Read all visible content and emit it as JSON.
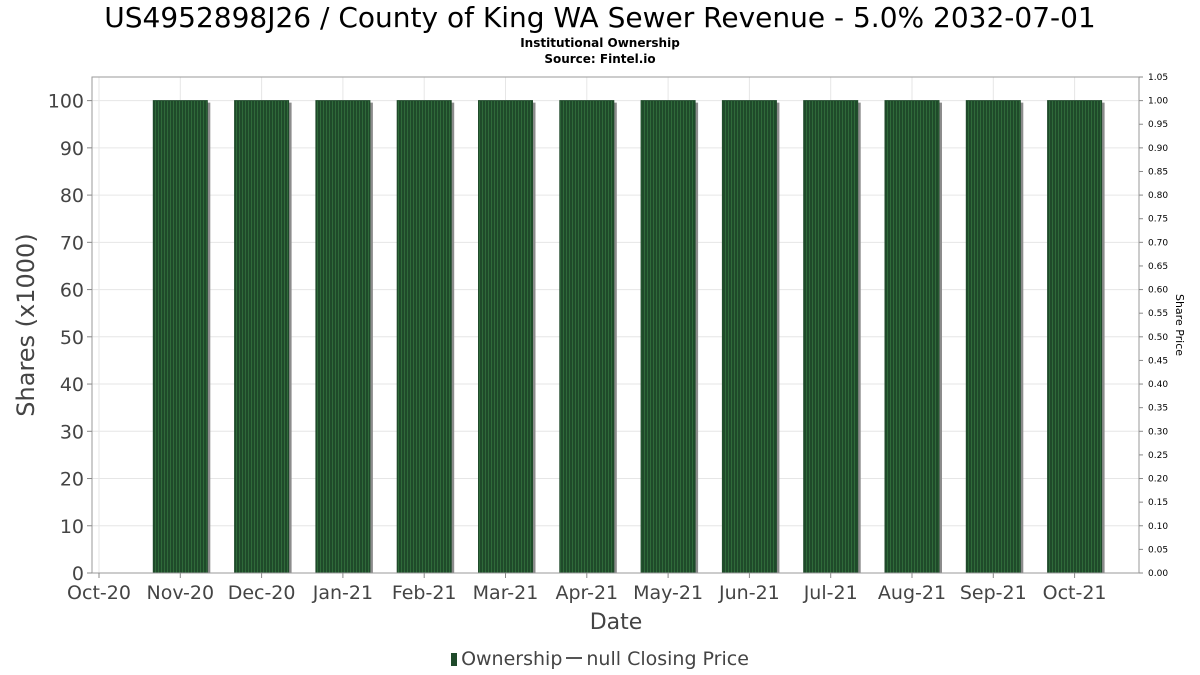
{
  "title": "US4952898J26 / County of King WA Sewer Revenue - 5.0% 2032-07-01",
  "subtitle": "Institutional Ownership",
  "source": "Source: Fintel.io",
  "legend": {
    "ownership_label": "Ownership",
    "price_label": "null Closing Price"
  },
  "colors": {
    "bar": "#1f4a2a",
    "bar_stripe": "#2f6a3a",
    "bar_shadow": "#8c8c8c",
    "grid": "#e6e6e6",
    "axis_text": "#444444"
  },
  "chart_data": {
    "type": "bar",
    "title": "US4952898J26 / County of King WA Sewer Revenue - 5.0% 2032-07-01",
    "subtitle": "Institutional Ownership",
    "xlabel": "Date",
    "ylabel": "Shares (x1000)",
    "y2label": "Share Price",
    "x_ticks": [
      "Oct-20",
      "Nov-20",
      "Dec-20",
      "Jan-21",
      "Feb-21",
      "Mar-21",
      "Apr-21",
      "May-21",
      "Jun-21",
      "Jul-21",
      "Aug-21",
      "Sep-21",
      "Oct-21"
    ],
    "categories": [
      "Nov-20",
      "Dec-20",
      "Jan-21",
      "Feb-21",
      "Mar-21",
      "Apr-21",
      "May-21",
      "Jun-21",
      "Jul-21",
      "Aug-21",
      "Sep-21",
      "Oct-21"
    ],
    "series": [
      {
        "name": "Ownership",
        "values": [
          100,
          100,
          100,
          100,
          100,
          100,
          100,
          100,
          100,
          100,
          100,
          100
        ]
      }
    ],
    "ylim": [
      0,
      105
    ],
    "y_ticks": [
      0,
      10,
      20,
      30,
      40,
      50,
      60,
      70,
      80,
      90,
      100
    ],
    "y2lim": [
      0,
      1.05
    ],
    "y2_ticks": [
      "0.00",
      "0.05",
      "0.10",
      "0.15",
      "0.20",
      "0.25",
      "0.30",
      "0.35",
      "0.40",
      "0.45",
      "0.50",
      "0.55",
      "0.60",
      "0.65",
      "0.70",
      "0.75",
      "0.80",
      "0.85",
      "0.90",
      "0.95",
      "1.00",
      "1.05"
    ],
    "grid": true,
    "legend_position": "bottom"
  }
}
